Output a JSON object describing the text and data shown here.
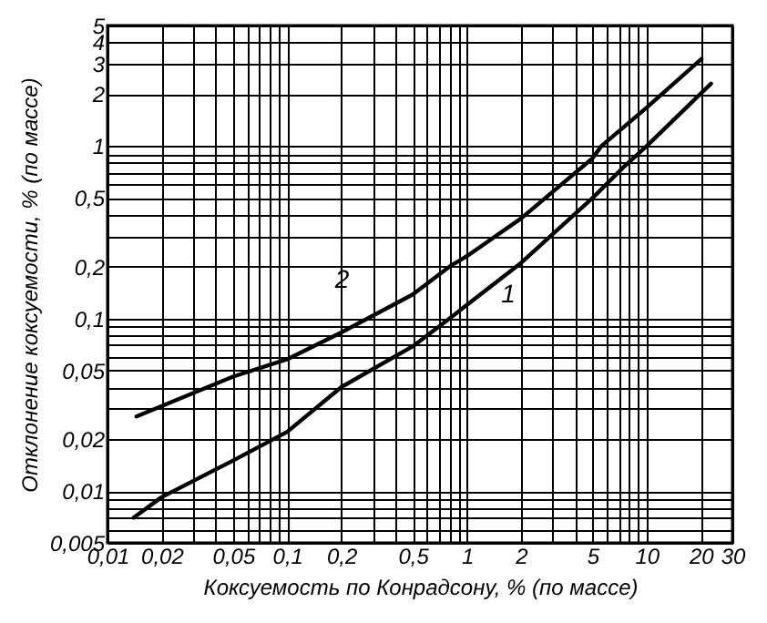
{
  "chart_data": {
    "type": "line",
    "xlabel": "Коксуемость по Конрадсону, % (по массе)",
    "ylabel": "Отклонение коксуемости, % (по массе)",
    "log": "xy",
    "grid": true,
    "marker": "none",
    "line_style": "solid",
    "xlim": [
      0.01,
      30
    ],
    "ylim": [
      0.005,
      5
    ],
    "xticks": [
      {
        "value": 0.01,
        "label": "0,01"
      },
      {
        "value": 0.02,
        "label": "0,02"
      },
      {
        "value": 0.03,
        "label": null
      },
      {
        "value": 0.04,
        "label": null
      },
      {
        "value": 0.05,
        "label": "0,05"
      },
      {
        "value": 0.06,
        "label": null
      },
      {
        "value": 0.07,
        "label": null
      },
      {
        "value": 0.08,
        "label": null
      },
      {
        "value": 0.09,
        "label": null
      },
      {
        "value": 0.1,
        "label": "0,1"
      },
      {
        "value": 0.2,
        "label": "0,2"
      },
      {
        "value": 0.3,
        "label": null
      },
      {
        "value": 0.4,
        "label": null
      },
      {
        "value": 0.5,
        "label": "0,5"
      },
      {
        "value": 0.6,
        "label": null
      },
      {
        "value": 0.7,
        "label": null
      },
      {
        "value": 0.8,
        "label": null
      },
      {
        "value": 0.9,
        "label": null
      },
      1,
      2,
      {
        "value": 3,
        "label": null
      },
      {
        "value": 4,
        "label": null
      },
      5,
      {
        "value": 6,
        "label": null
      },
      {
        "value": 7,
        "label": null
      },
      {
        "value": 8,
        "label": null
      },
      {
        "value": 9,
        "label": null
      },
      10,
      20,
      30
    ],
    "yticks": [
      {
        "value": 0.005,
        "label": "0,005"
      },
      {
        "value": 0.006,
        "label": null
      },
      {
        "value": 0.007,
        "label": null
      },
      {
        "value": 0.008,
        "label": null
      },
      {
        "value": 0.009,
        "label": null
      },
      {
        "value": 0.01,
        "label": "0,01"
      },
      {
        "value": 0.02,
        "label": "0,02"
      },
      {
        "value": 0.03,
        "label": null
      },
      {
        "value": 0.04,
        "label": null
      },
      {
        "value": 0.05,
        "label": "0,05"
      },
      {
        "value": 0.06,
        "label": null
      },
      {
        "value": 0.07,
        "label": null
      },
      {
        "value": 0.08,
        "label": null
      },
      {
        "value": 0.09,
        "label": null
      },
      {
        "value": 0.1,
        "label": "0,1"
      },
      {
        "value": 0.2,
        "label": "0,2"
      },
      {
        "value": 0.3,
        "label": null
      },
      {
        "value": 0.4,
        "label": null
      },
      {
        "value": 0.5,
        "label": "0,5"
      },
      {
        "value": 0.6,
        "label": null
      },
      {
        "value": 0.7,
        "label": null
      },
      {
        "value": 0.8,
        "label": null
      },
      {
        "value": 0.9,
        "label": null
      },
      1,
      2,
      3,
      4,
      5
    ],
    "series": [
      {
        "color": "#000000",
        "x": [
          0.014,
          0.02,
          0.05,
          0.1,
          0.2,
          0.5,
          0.8,
          1,
          2,
          5,
          7.4,
          10,
          22.8
        ],
        "values": [
          0.007,
          0.0092,
          0.015,
          0.022,
          0.04,
          0.069,
          0.1,
          0.12,
          0.21,
          0.5,
          0.75,
          1,
          2.3
        ]
      },
      {
        "color": "#000000",
        "x": [
          0.0145,
          0.05,
          0.1,
          0.2,
          0.5,
          0.8,
          1,
          2,
          5,
          5.6,
          10,
          20.2
        ],
        "values": [
          0.027,
          0.046,
          0.058,
          0.083,
          0.138,
          0.2,
          0.23,
          0.38,
          0.85,
          1,
          1.67,
          3.2
        ]
      }
    ],
    "annotations": [
      {
        "text": "2",
        "x": 0.3,
        "y": 0.11
      },
      {
        "text": "1",
        "x": 1.17,
        "y": 0.136
      }
    ]
  }
}
